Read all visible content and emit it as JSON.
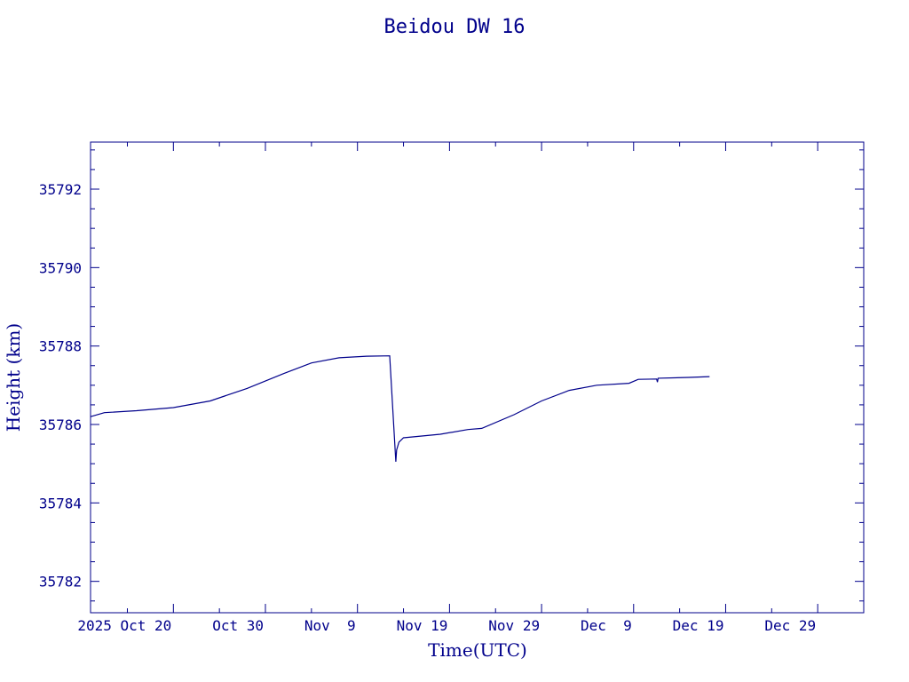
{
  "chart_data": {
    "type": "line",
    "title": "Beidou DW 16",
    "xlabel": "Time(UTC)",
    "ylabel": "Height (km)",
    "x_start": "2025-10-11",
    "x_end": "2026-01-03",
    "ylim": [
      35781.2,
      35793.2
    ],
    "x_ticks": [
      {
        "date": "2025-10-20",
        "label": "2025 Oct 20"
      },
      {
        "date": "2025-10-30",
        "label": "Oct 30"
      },
      {
        "date": "2025-11-09",
        "label": "Nov  9"
      },
      {
        "date": "2025-11-19",
        "label": "Nov 19"
      },
      {
        "date": "2025-11-29",
        "label": "Nov 29"
      },
      {
        "date": "2025-12-09",
        "label": "Dec  9"
      },
      {
        "date": "2025-12-19",
        "label": "Dec 19"
      },
      {
        "date": "2025-12-29",
        "label": "Dec 29"
      }
    ],
    "y_ticks": [
      35782,
      35784,
      35786,
      35788,
      35790,
      35792
    ],
    "grid": false,
    "series": [
      {
        "color": "#00008b",
        "x": [
          "2025-10-11T00:00",
          "2025-10-12T12:00",
          "2025-10-16T00:00",
          "2025-10-20T00:00",
          "2025-10-24T00:00",
          "2025-10-28T00:00",
          "2025-11-01T00:00",
          "2025-11-04T00:00",
          "2025-11-07T00:00",
          "2025-11-10T00:00",
          "2025-11-12T12:00",
          "2025-11-13T04:00",
          "2025-11-13T06:00",
          "2025-11-13T12:00",
          "2025-11-14T00:00",
          "2025-11-18T00:00",
          "2025-11-21T00:00",
          "2025-11-22T12:00",
          "2025-11-26T00:00",
          "2025-11-29T00:00",
          "2025-12-02T00:00",
          "2025-12-05T00:00",
          "2025-12-08T12:00",
          "2025-12-09T12:00",
          "2025-12-11T12:00",
          "2025-12-11T14:00",
          "2025-12-11T16:00",
          "2025-12-15T00:00",
          "2025-12-17T06:00"
        ],
        "y": [
          35786.2,
          35786.3,
          35786.35,
          35786.43,
          35786.6,
          35786.92,
          35787.3,
          35787.57,
          35787.7,
          35787.74,
          35787.75,
          35785.05,
          35785.35,
          35785.55,
          35785.66,
          35785.75,
          35785.87,
          35785.9,
          35786.25,
          35786.6,
          35786.87,
          35787.0,
          35787.05,
          35787.15,
          35787.16,
          35787.08,
          35787.18,
          35787.2,
          35787.22
        ]
      }
    ]
  }
}
